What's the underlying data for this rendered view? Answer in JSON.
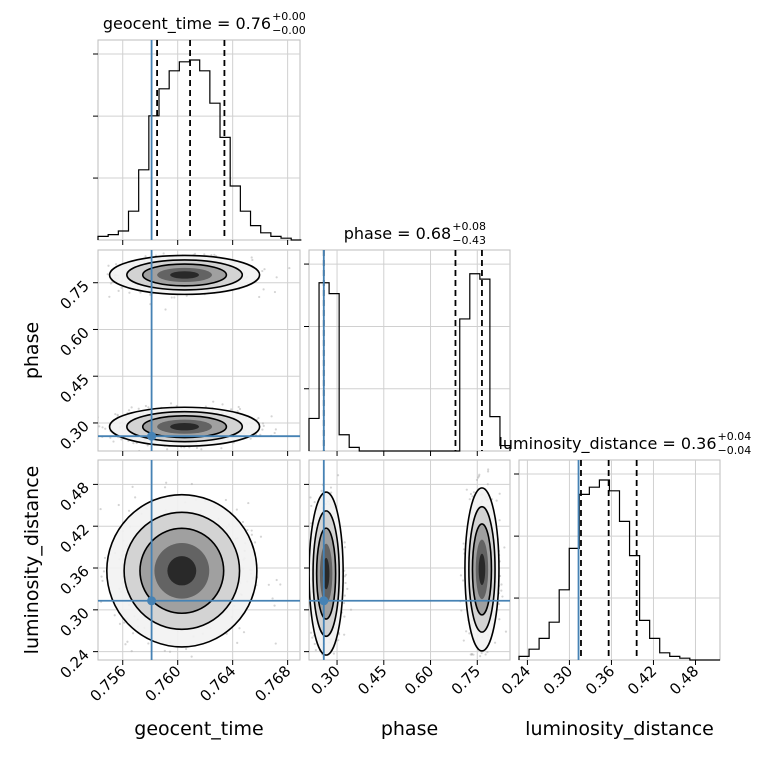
{
  "chart_data": {
    "type": "corner",
    "truth_color": "#4682b4",
    "hist_color": "#000000",
    "density_color": "#000000",
    "scatter_color": "#b0b0b0",
    "parameters": [
      {
        "name": "geocent_time",
        "axis_label": "geocent_time",
        "range": [
          0.7542,
          0.7689
        ],
        "ticks": [
          0.756,
          0.76,
          0.764,
          0.768
        ],
        "tick_labels": [
          "0.756",
          "0.760",
          "0.764",
          "0.768"
        ],
        "truth": 0.7581,
        "quantiles": [
          0.7585,
          0.7609,
          0.7634
        ],
        "title": {
          "prefix": "geocent_time = ",
          "value": "0.76",
          "plus": "+0.00",
          "minus": "−0.00"
        },
        "hist": {
          "edges_start": 0.7542,
          "bin_width": 0.00074,
          "counts": [
            0.02,
            0.03,
            0.05,
            0.16,
            0.39,
            0.69,
            0.84,
            0.94,
            0.99,
            1.0,
            0.94,
            0.76,
            0.57,
            0.3,
            0.16,
            0.08,
            0.04,
            0.02,
            0.01,
            0.0
          ]
        }
      },
      {
        "name": "phase",
        "axis_label": "phase",
        "range": [
          0.21,
          0.855
        ],
        "ticks": [
          0.3,
          0.45,
          0.6,
          0.75
        ],
        "tick_labels": [
          "0.30",
          "0.45",
          "0.60",
          "0.75"
        ],
        "truth": 0.2575,
        "quantiles": [
          0.2575,
          0.68,
          0.765
        ],
        "title": {
          "prefix": "phase = ",
          "value": "0.68",
          "plus": "+0.08",
          "minus": "−0.43"
        },
        "hist": {
          "edges_start": 0.21,
          "bin_width": 0.03225,
          "counts": [
            0.18,
            0.93,
            0.87,
            0.09,
            0.02,
            0.0,
            0.0,
            0.0,
            0.0,
            0.0,
            0.0,
            0.0,
            0.0,
            0.0,
            0.0,
            0.73,
            0.98,
            0.95,
            0.19,
            0.03
          ]
        }
      },
      {
        "name": "luminosity_distance",
        "axis_label": "luminosity_distance",
        "range": [
          0.228,
          0.515
        ],
        "ticks": [
          0.24,
          0.3,
          0.36,
          0.42,
          0.48
        ],
        "tick_labels": [
          "0.24",
          "0.30",
          "0.36",
          "0.42",
          "0.48"
        ],
        "truth": 0.313,
        "quantiles": [
          0.3165,
          0.356,
          0.396
        ],
        "title": {
          "prefix": "luminosity_distance = ",
          "value": "0.36",
          "plus": "+0.04",
          "minus": "−0.04"
        },
        "hist": {
          "edges_start": 0.228,
          "bin_width": 0.01435,
          "counts": [
            0.02,
            0.06,
            0.12,
            0.21,
            0.39,
            0.62,
            0.92,
            0.96,
            1.0,
            0.94,
            0.77,
            0.58,
            0.22,
            0.12,
            0.04,
            0.02,
            0.01,
            0.0,
            0.0,
            0.0
          ]
        }
      }
    ],
    "pair_blobs": [
      {
        "x": 0,
        "y": 1,
        "centers": [
          [
            0.7605,
            0.775
          ],
          [
            0.7605,
            0.288
          ]
        ],
        "spread": [
          0.0021,
          0.024
        ]
      },
      {
        "x": 0,
        "y": 2,
        "centers": [
          [
            0.7603,
            0.356
          ]
        ],
        "spread": [
          0.0021,
          0.042
        ]
      },
      {
        "x": 1,
        "y": 2,
        "centers": [
          [
            0.265,
            0.352
          ],
          [
            0.765,
            0.358
          ]
        ],
        "spread": [
          0.021,
          0.045
        ]
      }
    ]
  }
}
